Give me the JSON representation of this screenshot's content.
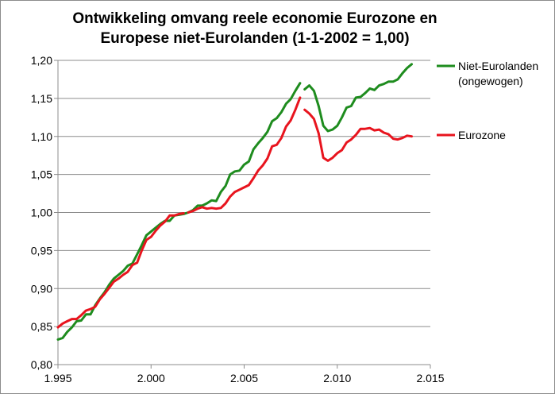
{
  "chart_data": {
    "type": "line",
    "title_line1": "Ontwikkeling omvang reele economie Eurozone en",
    "title_line2": "Europese niet-Eurolanden (1-1-2002 = 1,00)",
    "xlabel": "",
    "ylabel": "",
    "xlim": [
      1995,
      2015
    ],
    "ylim": [
      0.8,
      1.2
    ],
    "x_ticks": [
      "1.995",
      "2.000",
      "2.005",
      "2.010",
      "2.015"
    ],
    "y_ticks": [
      "0,80",
      "0,85",
      "0,90",
      "0,95",
      "1,00",
      "1,05",
      "1,10",
      "1,15",
      "1,20"
    ],
    "grid": "horizontal",
    "legend_position": "right",
    "series": [
      {
        "name_line1": "Niet-Eurolanden",
        "name_line2": "(ongewogen)",
        "color": "#1e8c1e",
        "segments": [
          [
            [
              1995.0,
              0.833
            ],
            [
              1995.25,
              0.835
            ],
            [
              1995.5,
              0.843
            ],
            [
              1995.75,
              0.849
            ],
            [
              1996.0,
              0.857
            ],
            [
              1996.25,
              0.858
            ],
            [
              1996.5,
              0.866
            ],
            [
              1996.75,
              0.866
            ],
            [
              1997.0,
              0.878
            ],
            [
              1997.25,
              0.887
            ],
            [
              1997.5,
              0.895
            ],
            [
              1997.75,
              0.905
            ],
            [
              1998.0,
              0.913
            ],
            [
              1998.25,
              0.918
            ],
            [
              1998.5,
              0.923
            ],
            [
              1998.75,
              0.93
            ],
            [
              1999.0,
              0.933
            ],
            [
              1999.25,
              0.945
            ],
            [
              1999.5,
              0.957
            ],
            [
              1999.75,
              0.97
            ],
            [
              2000.0,
              0.975
            ],
            [
              2000.25,
              0.98
            ],
            [
              2000.5,
              0.985
            ],
            [
              2000.75,
              0.989
            ],
            [
              2001.0,
              0.989
            ],
            [
              2001.25,
              0.996
            ],
            [
              2001.5,
              0.997
            ],
            [
              2001.75,
              0.998
            ],
            [
              2002.0,
              1.0
            ],
            [
              2002.25,
              1.003
            ],
            [
              2002.5,
              1.009
            ],
            [
              2002.75,
              1.009
            ],
            [
              2003.0,
              1.012
            ],
            [
              2003.25,
              1.016
            ],
            [
              2003.5,
              1.015
            ],
            [
              2003.75,
              1.027
            ],
            [
              2004.0,
              1.035
            ],
            [
              2004.25,
              1.05
            ],
            [
              2004.5,
              1.054
            ],
            [
              2004.75,
              1.055
            ],
            [
              2005.0,
              1.063
            ],
            [
              2005.25,
              1.067
            ],
            [
              2005.5,
              1.083
            ],
            [
              2005.75,
              1.091
            ],
            [
              2006.0,
              1.098
            ],
            [
              2006.25,
              1.106
            ],
            [
              2006.5,
              1.12
            ],
            [
              2006.75,
              1.124
            ],
            [
              2007.0,
              1.132
            ],
            [
              2007.25,
              1.143
            ],
            [
              2007.5,
              1.149
            ],
            [
              2007.75,
              1.16
            ],
            [
              2008.0,
              1.17
            ]
          ],
          [
            [
              2008.25,
              1.162
            ],
            [
              2008.5,
              1.167
            ],
            [
              2008.75,
              1.16
            ],
            [
              2009.0,
              1.14
            ],
            [
              2009.25,
              1.114
            ],
            [
              2009.5,
              1.107
            ],
            [
              2009.75,
              1.109
            ],
            [
              2010.0,
              1.114
            ],
            [
              2010.25,
              1.125
            ],
            [
              2010.5,
              1.138
            ],
            [
              2010.75,
              1.14
            ],
            [
              2011.0,
              1.151
            ],
            [
              2011.25,
              1.152
            ],
            [
              2011.5,
              1.157
            ],
            [
              2011.75,
              1.163
            ],
            [
              2012.0,
              1.161
            ],
            [
              2012.25,
              1.167
            ],
            [
              2012.5,
              1.169
            ],
            [
              2012.75,
              1.172
            ],
            [
              2013.0,
              1.172
            ],
            [
              2013.25,
              1.175
            ],
            [
              2013.5,
              1.183
            ],
            [
              2013.75,
              1.19
            ],
            [
              2014.0,
              1.195
            ]
          ]
        ]
      },
      {
        "name_line1": "Eurozone",
        "name_line2": "",
        "color": "#e8141e",
        "segments": [
          [
            [
              1995.0,
              0.849
            ],
            [
              1995.25,
              0.854
            ],
            [
              1995.5,
              0.857
            ],
            [
              1995.75,
              0.86
            ],
            [
              1996.0,
              0.86
            ],
            [
              1996.25,
              0.865
            ],
            [
              1996.5,
              0.871
            ],
            [
              1996.75,
              0.873
            ],
            [
              1997.0,
              0.876
            ],
            [
              1997.25,
              0.886
            ],
            [
              1997.5,
              0.893
            ],
            [
              1997.75,
              0.901
            ],
            [
              1998.0,
              0.909
            ],
            [
              1998.25,
              0.913
            ],
            [
              1998.5,
              0.918
            ],
            [
              1998.75,
              0.922
            ],
            [
              1999.0,
              0.931
            ],
            [
              1999.25,
              0.934
            ],
            [
              1999.5,
              0.95
            ],
            [
              1999.75,
              0.964
            ],
            [
              2000.0,
              0.968
            ],
            [
              2000.25,
              0.976
            ],
            [
              2000.5,
              0.983
            ],
            [
              2000.75,
              0.988
            ],
            [
              2001.0,
              0.996
            ],
            [
              2001.25,
              0.996
            ],
            [
              2001.5,
              0.998
            ],
            [
              2001.75,
              0.999
            ]
          ],
          [
            [
              2002.0,
              1.0
            ],
            [
              2002.25,
              1.002
            ],
            [
              2002.5,
              1.005
            ],
            [
              2002.75,
              1.007
            ],
            [
              2003.0,
              1.005
            ],
            [
              2003.25,
              1.006
            ],
            [
              2003.5,
              1.005
            ],
            [
              2003.75,
              1.006
            ],
            [
              2004.0,
              1.012
            ],
            [
              2004.25,
              1.021
            ],
            [
              2004.5,
              1.027
            ],
            [
              2004.75,
              1.03
            ],
            [
              2005.0,
              1.033
            ],
            [
              2005.25,
              1.036
            ],
            [
              2005.5,
              1.045
            ],
            [
              2005.75,
              1.055
            ],
            [
              2006.0,
              1.062
            ],
            [
              2006.25,
              1.071
            ],
            [
              2006.5,
              1.087
            ],
            [
              2006.75,
              1.089
            ],
            [
              2007.0,
              1.098
            ],
            [
              2007.25,
              1.113
            ],
            [
              2007.5,
              1.121
            ],
            [
              2007.75,
              1.135
            ],
            [
              2008.0,
              1.151
            ]
          ],
          [
            [
              2008.25,
              1.135
            ],
            [
              2008.5,
              1.13
            ],
            [
              2008.75,
              1.123
            ],
            [
              2009.0,
              1.104
            ],
            [
              2009.25,
              1.072
            ],
            [
              2009.5,
              1.068
            ],
            [
              2009.75,
              1.072
            ],
            [
              2010.0,
              1.078
            ],
            [
              2010.25,
              1.082
            ],
            [
              2010.5,
              1.092
            ],
            [
              2010.75,
              1.096
            ],
            [
              2011.0,
              1.102
            ],
            [
              2011.25,
              1.11
            ],
            [
              2011.5,
              1.11
            ],
            [
              2011.75,
              1.111
            ],
            [
              2012.0,
              1.108
            ],
            [
              2012.25,
              1.109
            ],
            [
              2012.5,
              1.105
            ],
            [
              2012.75,
              1.103
            ],
            [
              2013.0,
              1.097
            ],
            [
              2013.25,
              1.096
            ],
            [
              2013.5,
              1.098
            ],
            [
              2013.75,
              1.101
            ],
            [
              2014.0,
              1.1
            ]
          ]
        ]
      }
    ]
  }
}
